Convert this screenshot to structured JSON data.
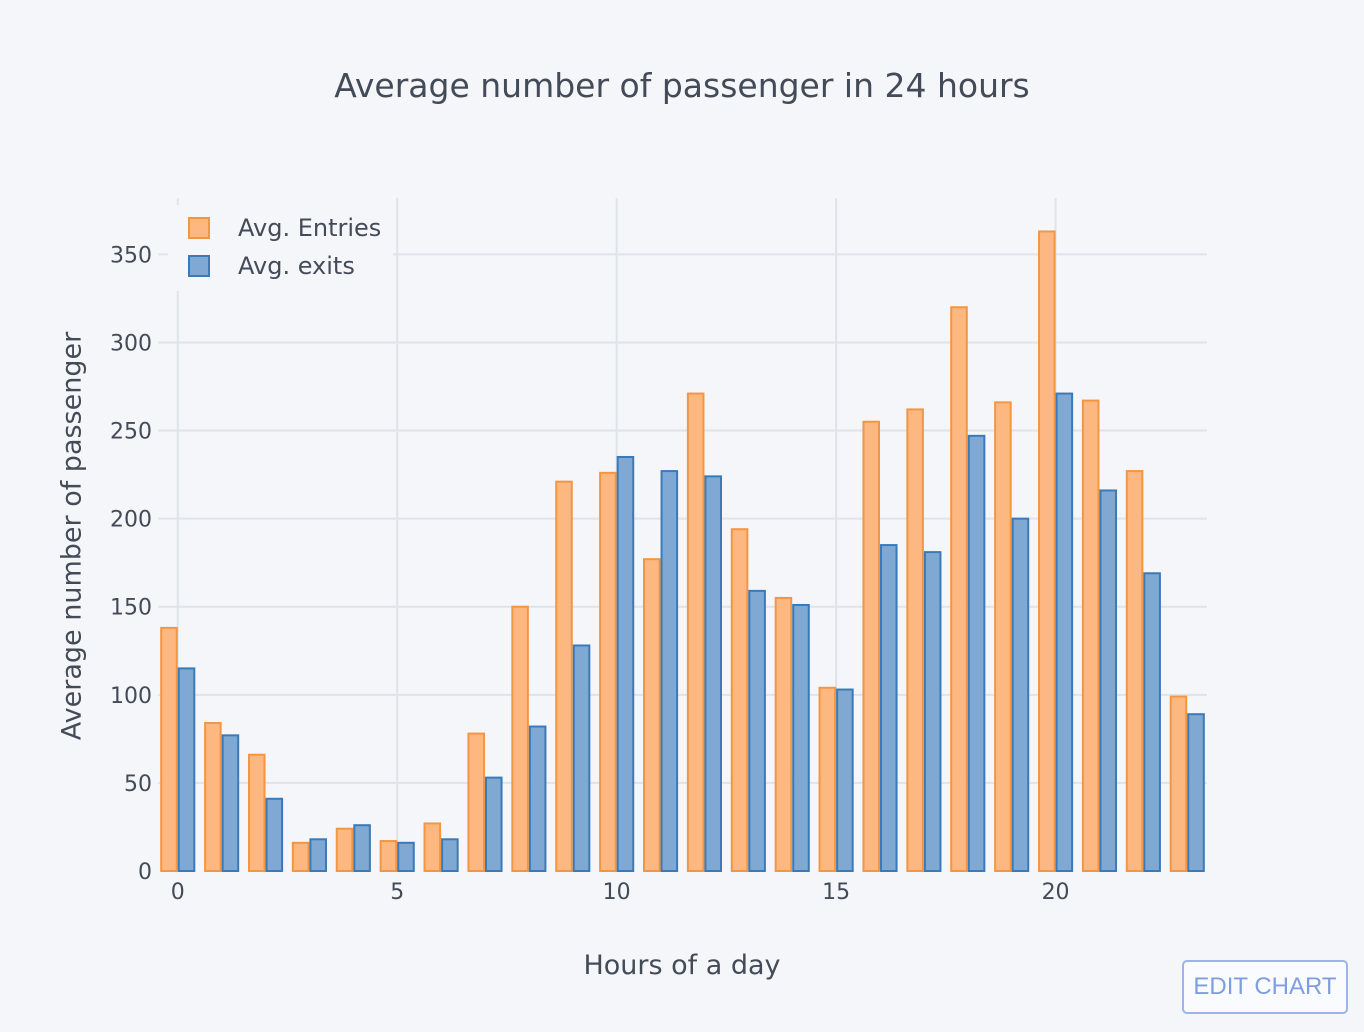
{
  "colors": {
    "background": "#f5f6fa",
    "grid": "#dfe3ea",
    "entries_fill": "#fdb882",
    "entries_line": "#f39641",
    "exits_fill": "#7fa9d2",
    "exits_line": "#3a7ab8",
    "text": "#444b58"
  },
  "edit_button": {
    "label": "EDIT CHART"
  },
  "chart_data": {
    "type": "bar",
    "title": "Average number of passenger in 24 hours",
    "xlabel": "Hours of a day",
    "ylabel": "Average number of passenger",
    "x": [
      0,
      1,
      2,
      3,
      4,
      5,
      6,
      7,
      8,
      9,
      10,
      11,
      12,
      13,
      14,
      15,
      16,
      17,
      18,
      19,
      20,
      21,
      22,
      23
    ],
    "x_ticks": [
      0,
      5,
      10,
      15,
      20
    ],
    "y_ticks": [
      0,
      50,
      100,
      150,
      200,
      250,
      300,
      350
    ],
    "ylim": [
      0,
      382
    ],
    "xlim": [
      -0.45,
      23.45
    ],
    "grid": true,
    "legend_position": "top-left",
    "series": [
      {
        "name": "Avg. Entries",
        "values": [
          138,
          84,
          66,
          16,
          24,
          17,
          27,
          78,
          150,
          221,
          226,
          177,
          271,
          194,
          155,
          104,
          255,
          262,
          320,
          266,
          363,
          267,
          227,
          99
        ]
      },
      {
        "name": "Avg. exits",
        "values": [
          115,
          77,
          41,
          18,
          26,
          16,
          18,
          53,
          82,
          128,
          235,
          227,
          224,
          159,
          151,
          103,
          185,
          181,
          247,
          200,
          271,
          216,
          169,
          89
        ]
      }
    ]
  }
}
